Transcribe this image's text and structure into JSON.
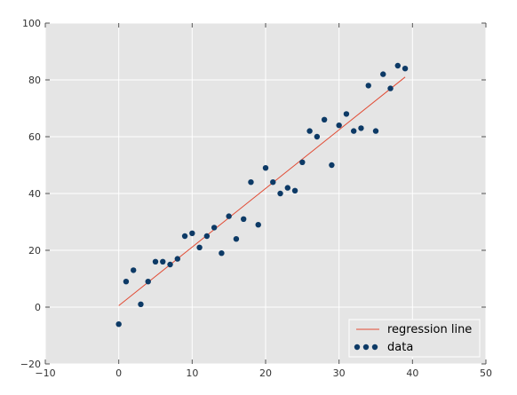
{
  "chart_data": {
    "type": "scatter",
    "title": "",
    "xlabel": "",
    "ylabel": "",
    "xlim": [
      -10,
      50
    ],
    "ylim": [
      -20,
      100
    ],
    "xticks": [
      -10,
      0,
      10,
      20,
      30,
      40,
      50
    ],
    "yticks": [
      -20,
      0,
      20,
      40,
      60,
      80,
      100
    ],
    "grid": true,
    "legend_position": "bottom-right",
    "series": [
      {
        "name": "data",
        "kind": "scatter",
        "color": "#0d3a66",
        "x": [
          0,
          1,
          2,
          3,
          4,
          5,
          6,
          7,
          8,
          9,
          10,
          11,
          12,
          13,
          14,
          15,
          16,
          17,
          18,
          19,
          20,
          21,
          22,
          23,
          24,
          25,
          26,
          27,
          28,
          29,
          30,
          31,
          32,
          33,
          34,
          35,
          36,
          37,
          38,
          39
        ],
        "y": [
          -6,
          9,
          13,
          1,
          9,
          16,
          16,
          15,
          17,
          25,
          26,
          21,
          25,
          28,
          19,
          32,
          24,
          31,
          44,
          29,
          49,
          44,
          40,
          42,
          41,
          51,
          62,
          60,
          66,
          50,
          64,
          68,
          62,
          63,
          78,
          62,
          82,
          77,
          85,
          84
        ]
      },
      {
        "name": "regression line",
        "kind": "line",
        "color": "#e24a33",
        "x": [
          0,
          39
        ],
        "y": [
          0.5,
          81
        ]
      }
    ]
  }
}
